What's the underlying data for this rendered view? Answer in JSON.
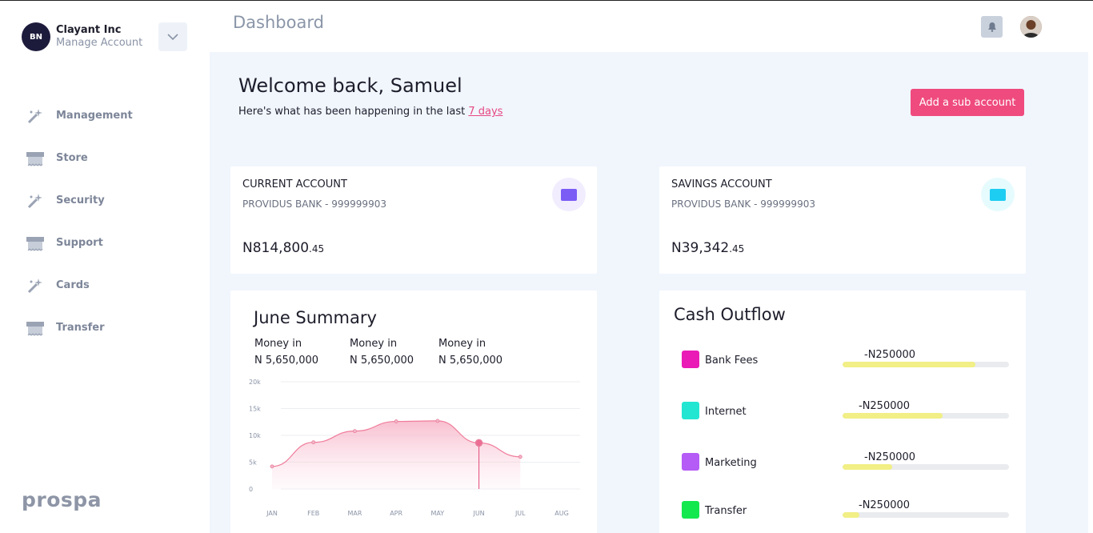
{
  "org": {
    "initials": "BN",
    "name": "Clayant Inc",
    "manage_label": "Manage Account"
  },
  "sidebar": {
    "items": [
      {
        "label": "Management",
        "icon": "wand-icon"
      },
      {
        "label": "Store",
        "icon": "store-icon"
      },
      {
        "label": "Security",
        "icon": "wand-icon"
      },
      {
        "label": "Support",
        "icon": "store-icon"
      },
      {
        "label": "Cards",
        "icon": "wand-icon"
      },
      {
        "label": "Transfer",
        "icon": "store-icon"
      }
    ],
    "brand": "prospa"
  },
  "header": {
    "title": "Dashboard"
  },
  "welcome": {
    "title": "Welcome back, Samuel",
    "subtitle_prefix": "Here's what has been happening in the last ",
    "subtitle_link": "7 days",
    "add_button": "Add a sub account"
  },
  "accounts": [
    {
      "title": "CURRENT ACCOUNT",
      "bank": "PROVIDUS BANK - 999999903",
      "balance_main": "N814,800",
      "balance_dec": ".45",
      "color": "#7b5cf5",
      "bg": "#f1edfe"
    },
    {
      "title": "SAVINGS ACCOUNT",
      "bank": "PROVIDUS BANK - 999999903",
      "balance_main": "N39,342",
      "balance_dec": ".45",
      "color": "#1ecdf2",
      "bg": "#e6fbfe"
    }
  ],
  "summary": {
    "title": "June Summary",
    "columns": [
      {
        "label": "Money in",
        "value": "N 5,650,000"
      },
      {
        "label": "Money in",
        "value": "N 5,650,000"
      },
      {
        "label": "Money in",
        "value": "N 5,650,000"
      }
    ]
  },
  "chart_data": {
    "type": "area",
    "categories": [
      "JAN",
      "FEB",
      "MAR",
      "APR",
      "MAY",
      "JUN",
      "JUL",
      "AUG"
    ],
    "values": [
      4200,
      8700,
      10800,
      12600,
      12700,
      8600,
      6000,
      null
    ],
    "yticks": [
      "0",
      "5k",
      "10k",
      "15k",
      "20k"
    ],
    "ylim": [
      0,
      20000
    ],
    "highlight_index": 5,
    "color": "#f07c9b"
  },
  "outflow": {
    "title": "Cash Outflow",
    "items": [
      {
        "label": "Bank Fees",
        "amount": "-N250000",
        "color": "#e91ab6",
        "fill": 0.8
      },
      {
        "label": "Internet",
        "amount": "-N250000",
        "color": "#22e6d2",
        "fill": 0.6
      },
      {
        "label": "Marketing",
        "amount": "-N250000",
        "color": "#b45cf5",
        "fill": 0.3
      },
      {
        "label": "Transfer",
        "amount": "-N250000",
        "color": "#13e84e",
        "fill": 0.1
      }
    ]
  }
}
